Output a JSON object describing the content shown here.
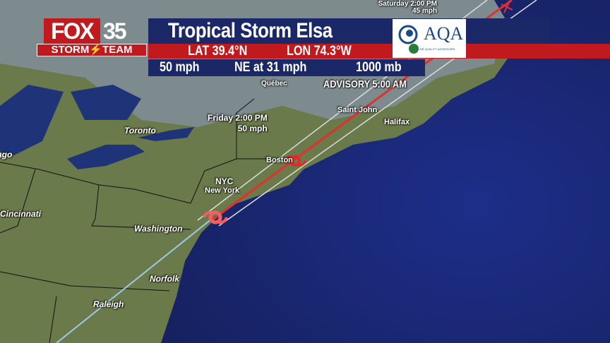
{
  "branding": {
    "station": "FOX",
    "channel": "35",
    "team": "STORM⚡TEAM",
    "sponsor": "AQA",
    "sponsor_sub": "AIR QUALITY ASSESSORS"
  },
  "storm": {
    "title": "Tropical Storm Elsa",
    "lat": "LAT 39.4°N",
    "lon": "LON 74.3°W",
    "wind": "50 mph",
    "motion": "NE at 31 mph",
    "pressure": "1000 mb",
    "advisory": "ADVISORY 5:00 AM"
  },
  "forecast_points": [
    {
      "time": "Friday 2:00 PM",
      "wind": "50 mph"
    },
    {
      "time": "Saturday 2:00 PM",
      "wind": "45 mph"
    }
  ],
  "cities": [
    "Québec",
    "Toronto",
    "Saint John",
    "Halifax",
    "Boston",
    "NYC",
    "New York",
    "Cincinnati",
    "Washington",
    "Norfolk",
    "Raleigh",
    "Chicago"
  ],
  "colors": {
    "navy": "#1b2868",
    "red": "#c01a1f",
    "ocean": "#1d2c78",
    "land": "#6e7c4c",
    "track_red": "#e03030",
    "past_track": "#9ecbe8"
  }
}
